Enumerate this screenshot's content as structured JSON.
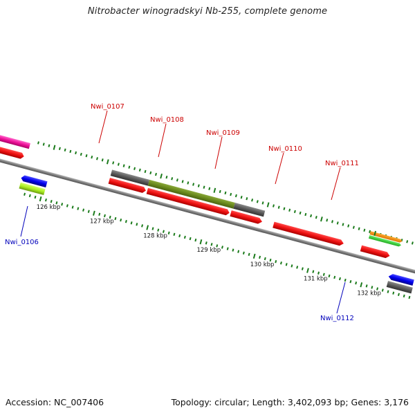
{
  "title": "Nitrobacter winogradskyi Nb-255, complete genome",
  "footer": {
    "accession": "Accession: NC_007406",
    "summary": "Topology: circular; Length: 3,402,093 bp; Genes: 3,176"
  },
  "scale": {
    "unit_labels": [
      "126 kbp",
      "127 kbp",
      "128 kbp",
      "129 kbp",
      "130 kbp",
      "131 kbp",
      "132 kbp"
    ]
  },
  "genes": {
    "forward": [
      "Nwi_0107",
      "Nwi_0108",
      "Nwi_0109",
      "Nwi_0110",
      "Nwi_0111"
    ],
    "reverse": [
      "Nwi_0106",
      "Nwi_0112"
    ]
  },
  "colors": {
    "cds": "#ee1111",
    "gene": "#555555",
    "forward_label": "#cc0000",
    "reverse_label": "#0000bb",
    "reverse_cds": "#0000ee",
    "tick": "#1a7a1a",
    "backbone": "#888888"
  }
}
